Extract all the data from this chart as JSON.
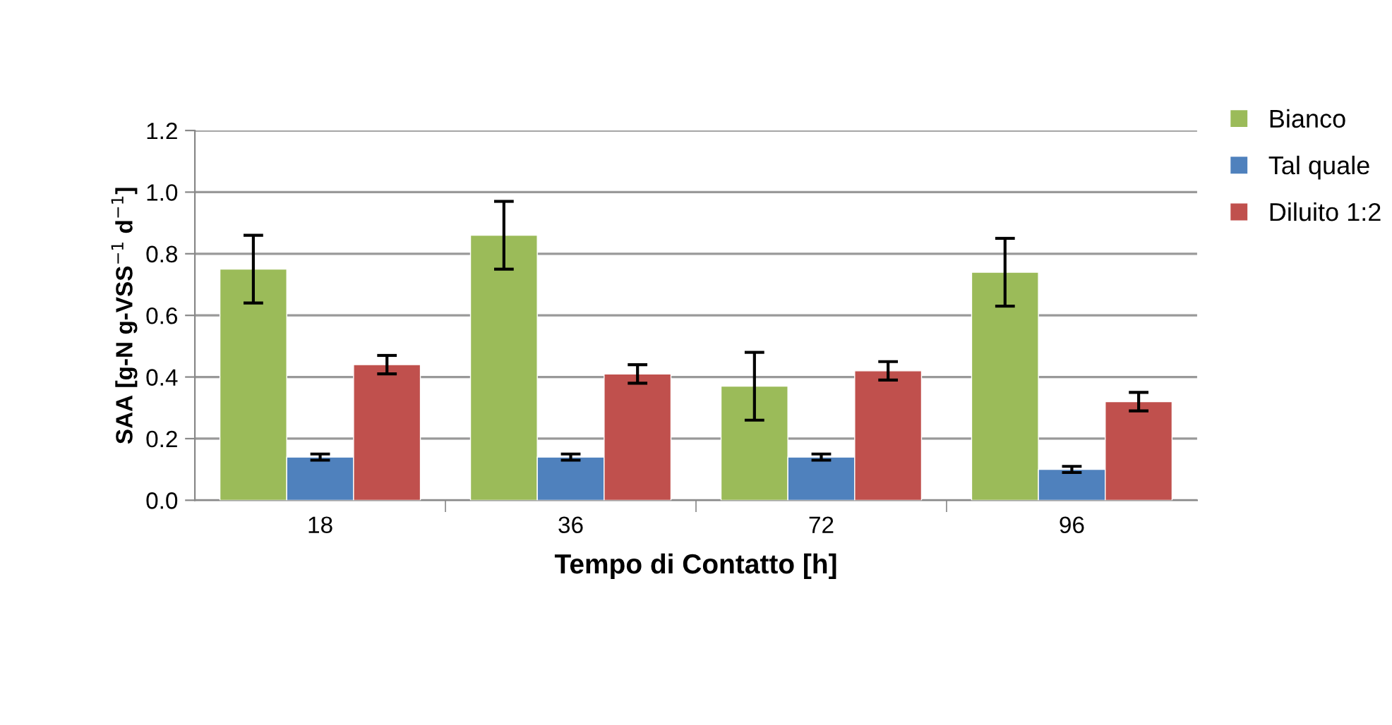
{
  "chart_data": {
    "type": "bar",
    "xlabel": "Tempo di Contatto [h]",
    "ylabel": "SAA [g-N g-VSS$^{−1}$ d$^{−1}$]",
    "categories": [
      "18",
      "36",
      "72",
      "96"
    ],
    "series": [
      {
        "name": "Bianco",
        "color": "#9bbb59",
        "values": [
          0.75,
          0.86,
          0.37,
          0.74
        ],
        "errors": [
          0.11,
          0.11,
          0.11,
          0.11
        ]
      },
      {
        "name": "Tal quale",
        "color": "#4f81bd",
        "values": [
          0.14,
          0.14,
          0.14,
          0.1
        ],
        "errors": [
          0.01,
          0.01,
          0.01,
          0.01
        ]
      },
      {
        "name": "Diluito 1:2",
        "color": "#c0504d",
        "values": [
          0.44,
          0.41,
          0.42,
          0.32
        ],
        "errors": [
          0.03,
          0.03,
          0.03,
          0.03
        ]
      }
    ],
    "ylim": [
      0,
      1.2
    ],
    "yticks": [
      {
        "value": 0,
        "label": "0.0"
      },
      {
        "value": 0.2,
        "label": "0.2"
      },
      {
        "value": 0.4,
        "label": "0.4"
      },
      {
        "value": 0.6,
        "label": "0.6"
      },
      {
        "value": 0.8,
        "label": "0.8"
      },
      {
        "value": 1.0,
        "label": "1.0"
      },
      {
        "value": 1.2,
        "label": "1.2"
      }
    ],
    "grid": "y",
    "legend": "right"
  }
}
